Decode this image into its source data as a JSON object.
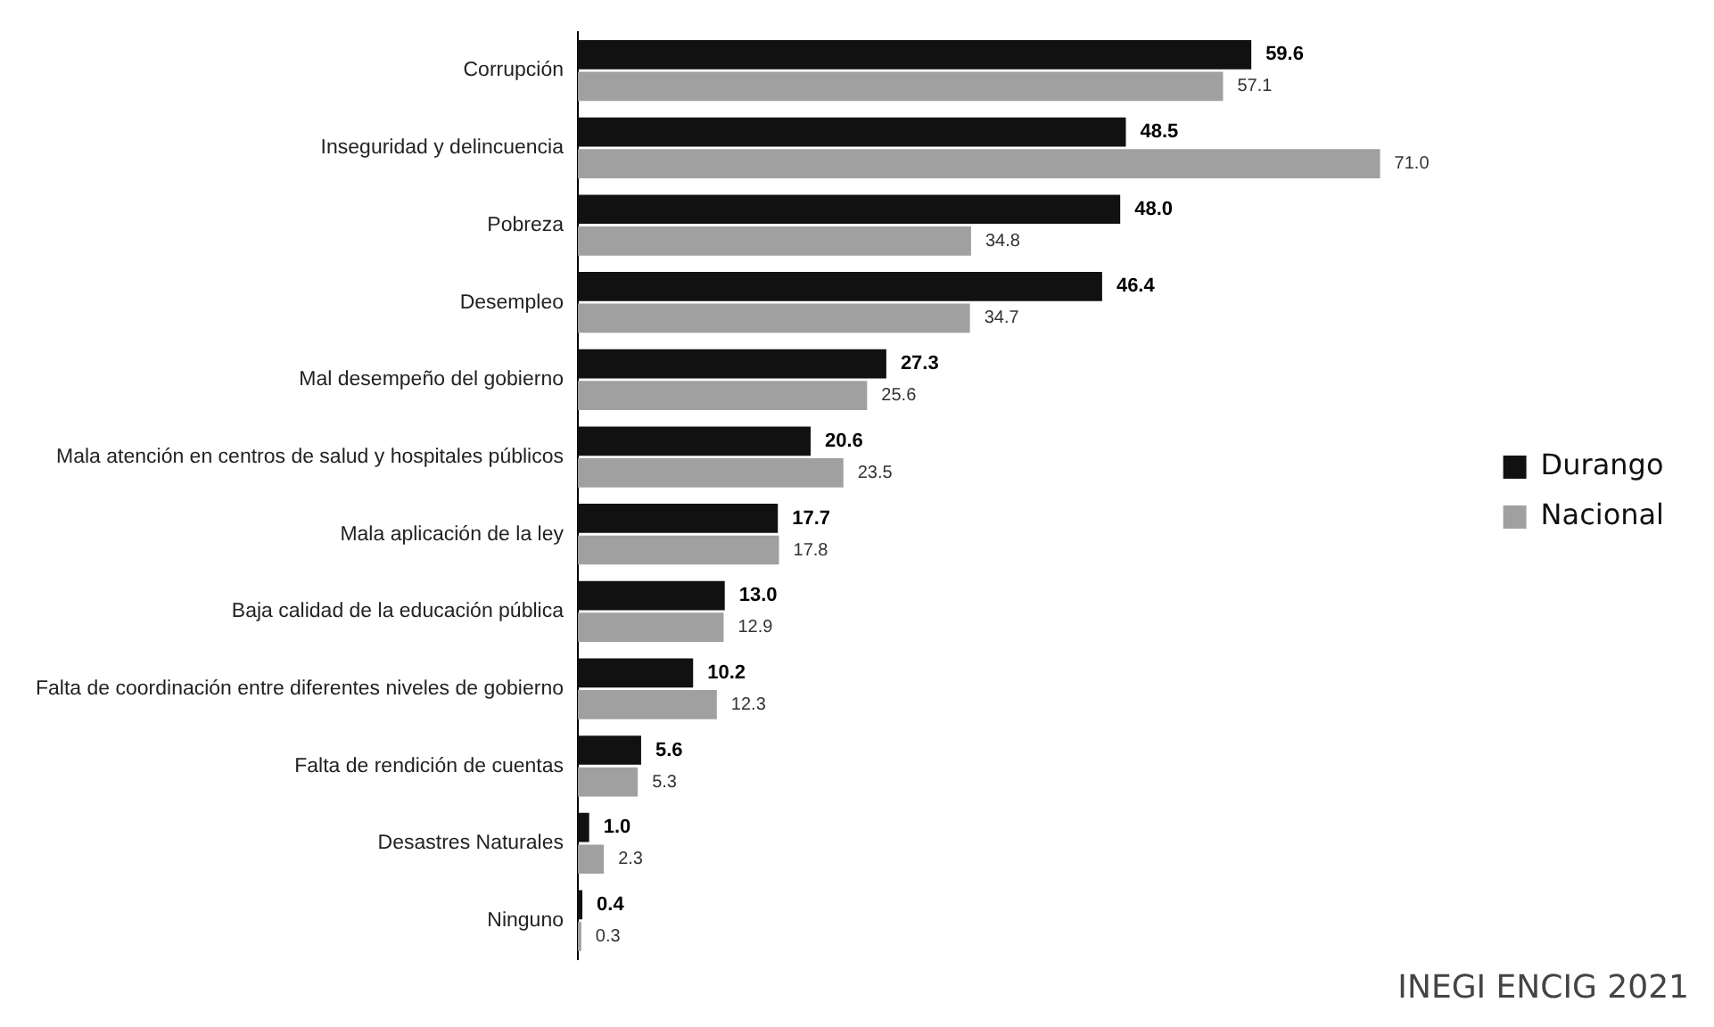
{
  "chart_data": {
    "type": "bar",
    "orientation": "horizontal",
    "categories": [
      "Corrupción",
      "Inseguridad y delincuencia",
      "Pobreza",
      "Desempleo",
      "Mal desempeño del gobierno",
      "Mala atención en centros de salud y hospitales públicos",
      "Mala aplicación de la ley",
      "Baja calidad de la educación pública",
      "Falta de coordinación entre diferentes niveles de gobierno",
      "Falta de rendición de cuentas",
      "Desastres Naturales",
      "Ninguno"
    ],
    "series": [
      {
        "name": "Durango",
        "color": "#111111",
        "values": [
          59.6,
          48.5,
          48.0,
          46.4,
          27.3,
          20.6,
          17.7,
          13.0,
          10.2,
          5.6,
          1.0,
          0.4
        ],
        "value_labels": [
          "59.6",
          "48.5",
          "48.0",
          "46.4",
          "27.3",
          "20.6",
          "17.7",
          "13.0",
          "10.2",
          "5.6",
          "1.0",
          "0.4"
        ]
      },
      {
        "name": "Nacional",
        "color": "#a0a0a0",
        "values": [
          57.1,
          71.0,
          34.8,
          34.7,
          25.6,
          23.5,
          17.8,
          12.9,
          12.3,
          5.3,
          2.3,
          0.3
        ],
        "value_labels": [
          "57.1",
          "71.0",
          "34.8",
          "34.7",
          "25.6",
          "23.5",
          "17.8",
          "12.9",
          "12.3",
          "5.3",
          "2.3",
          "0.3"
        ]
      }
    ],
    "tick_labels": "y",
    "legend": "right",
    "annotations": [
      "INEGI ENCIG 2021"
    ]
  }
}
